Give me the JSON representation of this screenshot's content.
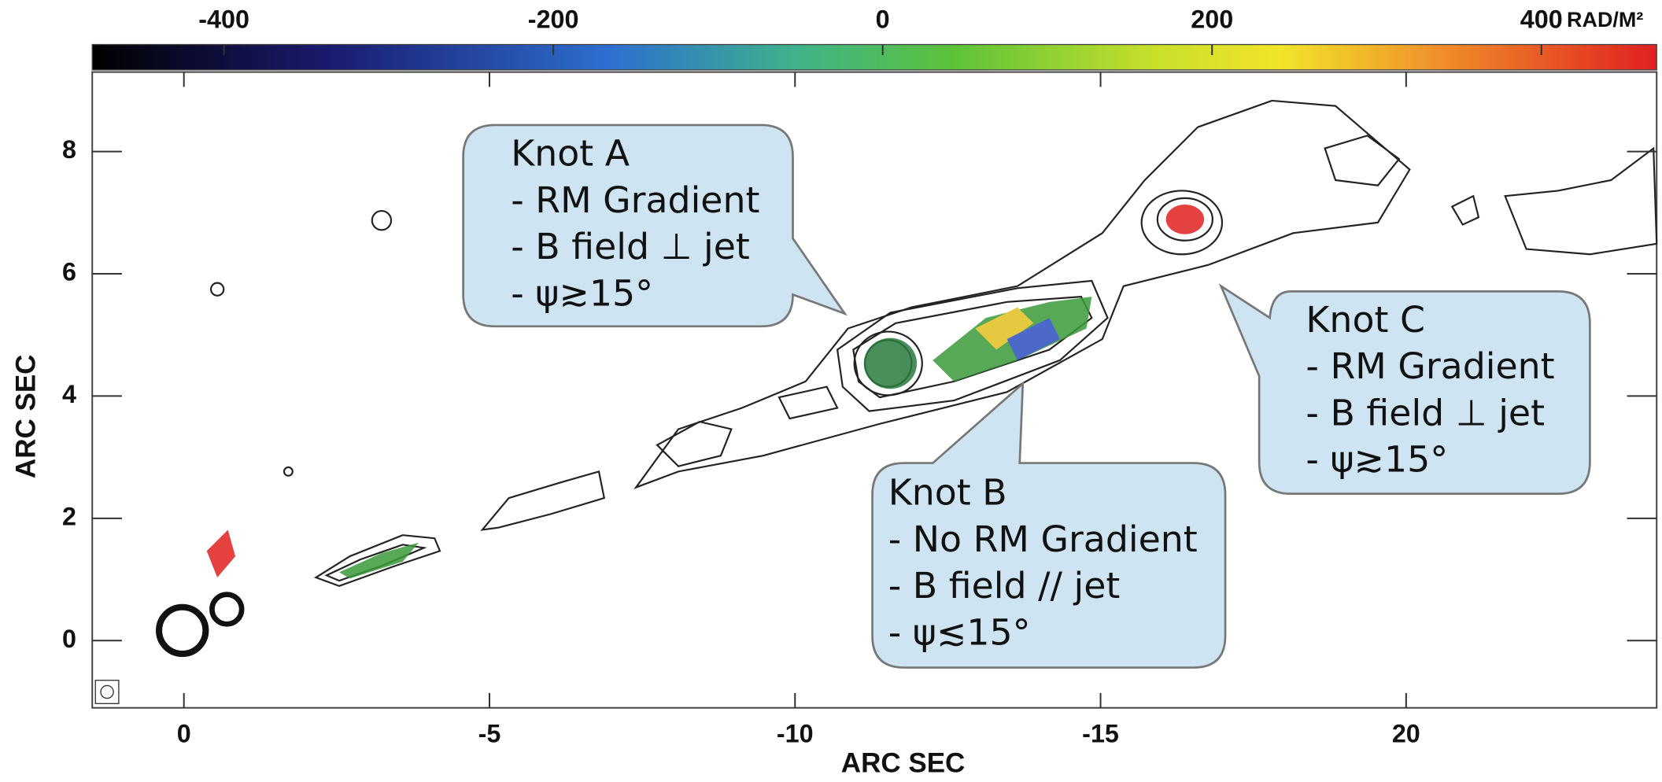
{
  "chart_data": {
    "type": "contour-map",
    "colorbar": {
      "label": "RAD/M²",
      "lim": [
        -480,
        470
      ],
      "ticks": [
        -400,
        -200,
        0,
        200,
        400
      ]
    },
    "xlabel": "ARC SEC",
    "ylabel": "ARC SEC",
    "xlim": [
      1.5,
      -24.1
    ],
    "ylim": [
      -1.1,
      9.3
    ],
    "xticks": [
      0,
      -5,
      -10,
      -15,
      {
        "value": -20,
        "label": "20"
      }
    ],
    "yticks": [
      0,
      2,
      4,
      6,
      8
    ],
    "annotations": [
      {
        "title": "Knot A",
        "lines": [
          "- RM Gradient",
          "- B field ⊥ jet",
          "- ψ≳15°"
        ]
      },
      {
        "title": "Knot B",
        "lines": [
          "- No RM Gradient",
          "- B field // jet",
          "- ψ≲15°"
        ]
      },
      {
        "title": "Knot C",
        "lines": [
          "- RM Gradient",
          "- B field ⊥ jet",
          "- ψ≳15°"
        ]
      }
    ]
  }
}
